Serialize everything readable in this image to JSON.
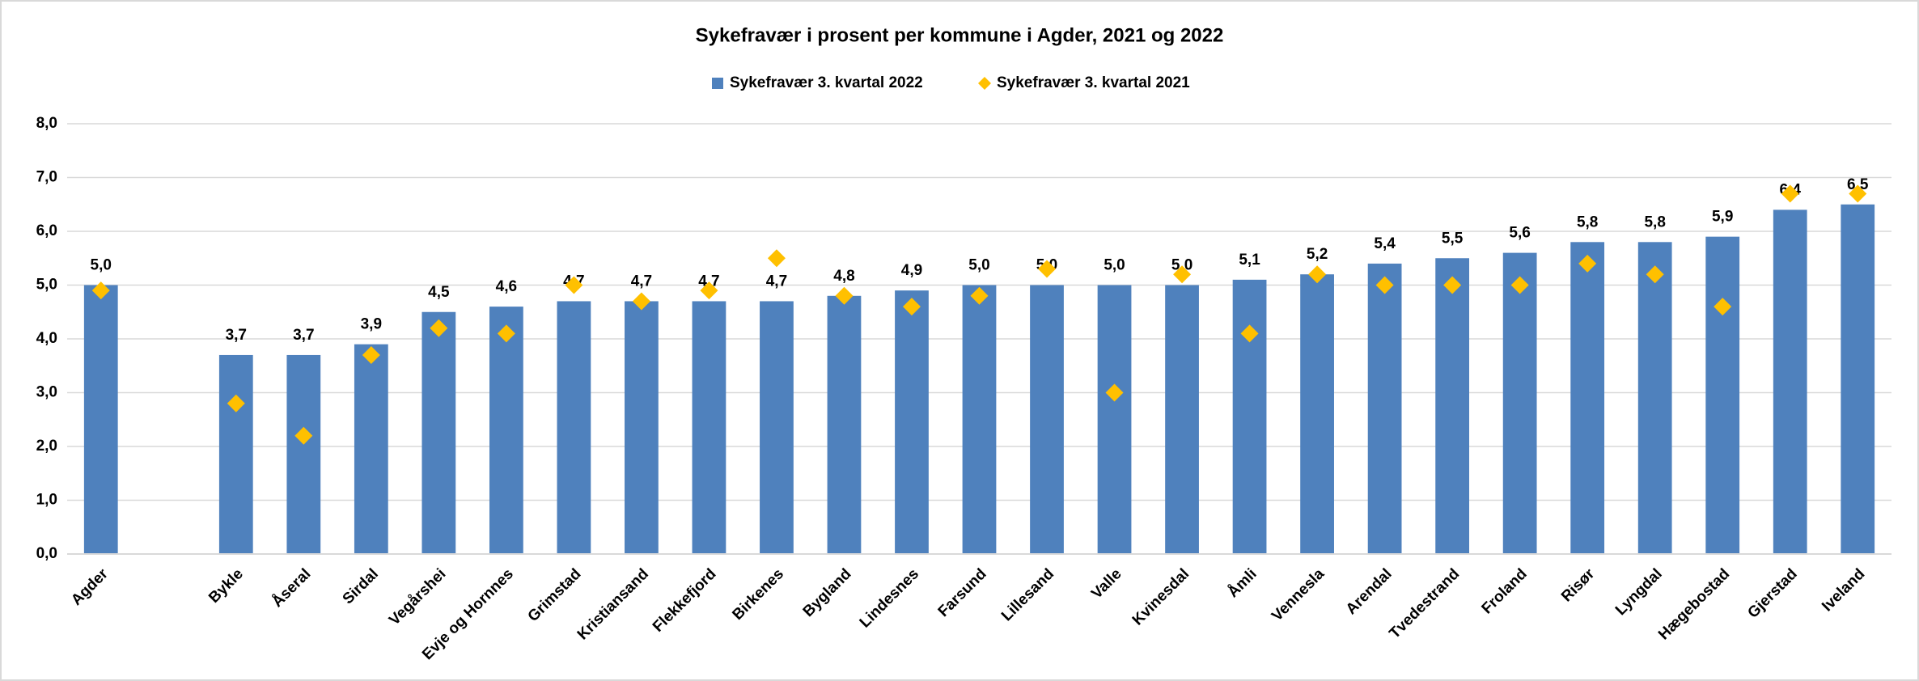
{
  "chart_data": {
    "type": "bar",
    "title": "Sykefravær i prosent per kommune i Agder, 2021 og 2022",
    "categories": [
      "Agder",
      null,
      "Bykle",
      "Åseral",
      "Sirdal",
      "Vegårshei",
      "Evje og Hornnes",
      "Grimstad",
      "Kristiansand",
      "Flekkefjord",
      "Birkenes",
      "Bygland",
      "Lindesnes",
      "Farsund",
      "Lillesand",
      "Valle",
      "Kvinesdal",
      "Åmli",
      "Vennesla",
      "Arendal",
      "Tvedestrand",
      "Froland",
      "Risør",
      "Lyngdal",
      "Hægebostad",
      "Gjerstad",
      "Iveland"
    ],
    "series": [
      {
        "name": "Sykefravær 3. kvartal 2022",
        "color": "#4f81bd",
        "marker": "bar",
        "values": [
          5.0,
          null,
          3.7,
          3.7,
          3.9,
          4.5,
          4.6,
          4.7,
          4.7,
          4.7,
          4.7,
          4.8,
          4.9,
          5.0,
          5.0,
          5.0,
          5.0,
          5.1,
          5.2,
          5.4,
          5.5,
          5.6,
          5.8,
          5.8,
          5.9,
          6.4,
          6.5
        ],
        "value_labels": [
          "5,0",
          null,
          "3,7",
          "3,7",
          "3,9",
          "4,5",
          "4,6",
          "4,7",
          "4,7",
          "4,7",
          "4,7",
          "4,8",
          "4,9",
          "5,0",
          "5,0",
          "5,0",
          "5,0",
          "5,1",
          "5,2",
          "5,4",
          "5,5",
          "5,6",
          "5,8",
          "5,8",
          "5,9",
          "6,4",
          "6,5"
        ]
      },
      {
        "name": "Sykefravær 3. kvartal 2021",
        "color": "#ffc000",
        "marker": "diamond",
        "values": [
          4.9,
          null,
          2.8,
          2.2,
          3.7,
          4.2,
          4.1,
          5.0,
          4.7,
          4.9,
          5.5,
          4.8,
          4.6,
          4.8,
          5.3,
          3.0,
          5.2,
          4.1,
          5.2,
          5.0,
          5.0,
          5.0,
          5.4,
          5.2,
          4.6,
          6.7,
          6.7
        ]
      }
    ],
    "ylim": [
      0,
      8
    ],
    "yticks": [
      {
        "value": 0,
        "label": "0,0"
      },
      {
        "value": 1,
        "label": "1,0"
      },
      {
        "value": 2,
        "label": "2,0"
      },
      {
        "value": 3,
        "label": "3,0"
      },
      {
        "value": 4,
        "label": "4,0"
      },
      {
        "value": 5,
        "label": "5,0"
      },
      {
        "value": 6,
        "label": "6,0"
      },
      {
        "value": 7,
        "label": "7,0"
      },
      {
        "value": 8,
        "label": "8,0"
      }
    ],
    "grid": true,
    "legend": "top"
  }
}
